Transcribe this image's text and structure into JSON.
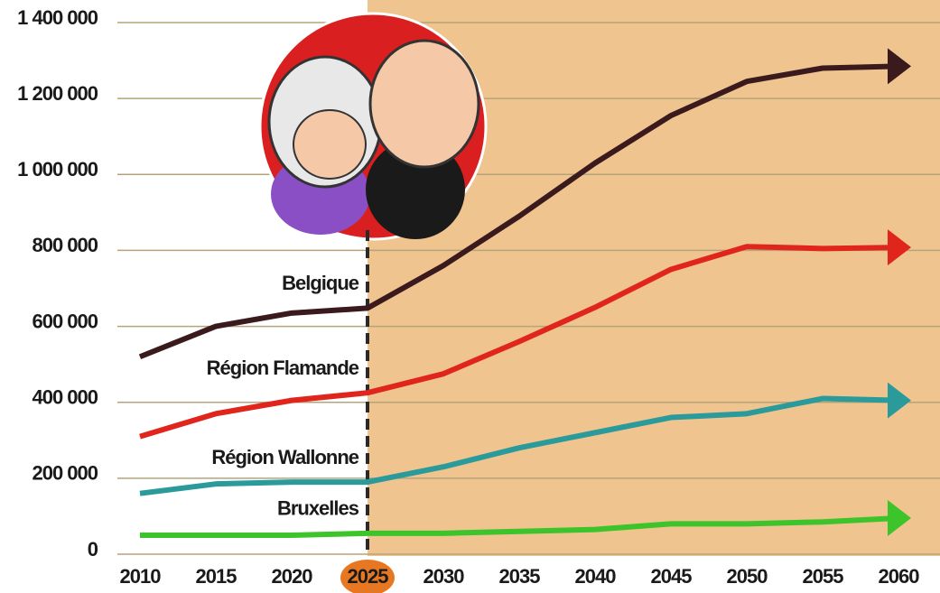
{
  "chart_data": {
    "type": "line",
    "x": [
      2010,
      2015,
      2020,
      2025,
      2030,
      2035,
      2040,
      2045,
      2050,
      2055,
      2060
    ],
    "series": [
      {
        "name": "Belgique",
        "color": "#3b1a1e",
        "values": [
          520000,
          600000,
          635000,
          648000,
          760000,
          890000,
          1030000,
          1155000,
          1245000,
          1280000,
          1285000
        ]
      },
      {
        "name": "Région Flamande",
        "color": "#e0261c",
        "values": [
          310000,
          370000,
          405000,
          425000,
          475000,
          560000,
          650000,
          750000,
          810000,
          805000,
          808000
        ]
      },
      {
        "name": "Région Wallonne",
        "color": "#2a9a9a",
        "values": [
          160000,
          185000,
          190000,
          190000,
          230000,
          280000,
          320000,
          360000,
          370000,
          410000,
          405000
        ]
      },
      {
        "name": "Bruxelles",
        "color": "#3dc42a",
        "values": [
          50000,
          50000,
          50000,
          55000,
          55000,
          60000,
          65000,
          80000,
          80000,
          85000,
          95000
        ]
      }
    ],
    "xlim": [
      2010,
      2060
    ],
    "ylim": [
      0,
      1400000
    ],
    "xticks": [
      2010,
      2015,
      2020,
      2025,
      2030,
      2035,
      2040,
      2045,
      2050,
      2055,
      2060
    ],
    "yticks": [
      0,
      {
        "value": 200000,
        "label": "200 000"
      },
      {
        "value": 400000,
        "label": "400 000"
      },
      {
        "value": 600000,
        "label": "600 000"
      },
      {
        "value": 800000,
        "label": "800 000"
      },
      {
        "value": 1000000,
        "label": "1 000 000"
      },
      {
        "value": 1200000,
        "label": "1 200 000"
      },
      {
        "value": 1400000,
        "label": "1 400 000"
      }
    ],
    "grid": true,
    "highlight_x": 2025,
    "highlight_color": "#f0c48f"
  }
}
